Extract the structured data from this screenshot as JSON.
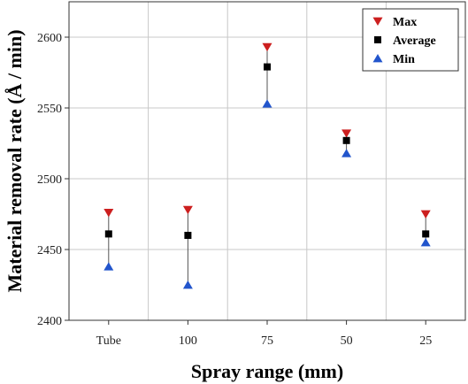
{
  "chart_data": {
    "type": "scatter",
    "title": "",
    "xlabel": "Spray range (mm)",
    "ylabel": "Material removal rate (Å / min)",
    "categories": [
      "Tube",
      "100",
      "75",
      "50",
      "25"
    ],
    "ylim": [
      2400,
      2625
    ],
    "yticks": [
      2400,
      2450,
      2500,
      2550,
      2600
    ],
    "grid": true,
    "legend_position": "top-right",
    "error_bars": "vertical line from Min to Max",
    "series": [
      {
        "name": "Max",
        "marker": "triangle-down",
        "color": "#cc1f1f",
        "values": [
          2476,
          2478,
          2593,
          2532,
          2475
        ]
      },
      {
        "name": "Average",
        "marker": "square",
        "color": "#000000",
        "values": [
          2461,
          2460,
          2579,
          2527,
          2461
        ]
      },
      {
        "name": "Min",
        "marker": "triangle-up",
        "color": "#2255cc",
        "values": [
          2438,
          2425,
          2553,
          2518,
          2455
        ]
      }
    ]
  }
}
